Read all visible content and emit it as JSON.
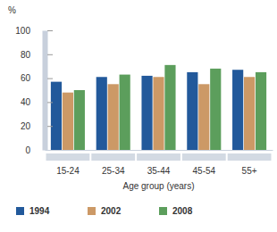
{
  "chart_data": {
    "type": "bar",
    "ylabel": "%",
    "xlabel": "Age group (years)",
    "categories": [
      "15-24",
      "25-34",
      "35-44",
      "45-54",
      "55+"
    ],
    "series": [
      {
        "name": "1994",
        "color": "#22599b",
        "values": [
          57,
          61,
          62,
          65,
          67
        ]
      },
      {
        "name": "2002",
        "color": "#cc9966",
        "values": [
          48,
          55,
          61,
          55,
          61
        ]
      },
      {
        "name": "2008",
        "color": "#5c9e5c",
        "values": [
          50,
          63,
          71,
          68,
          65
        ]
      }
    ],
    "ylim": [
      0,
      100
    ],
    "yticks": [
      0,
      20,
      40,
      60,
      80,
      100
    ],
    "grid": false,
    "legend": "bottom"
  }
}
